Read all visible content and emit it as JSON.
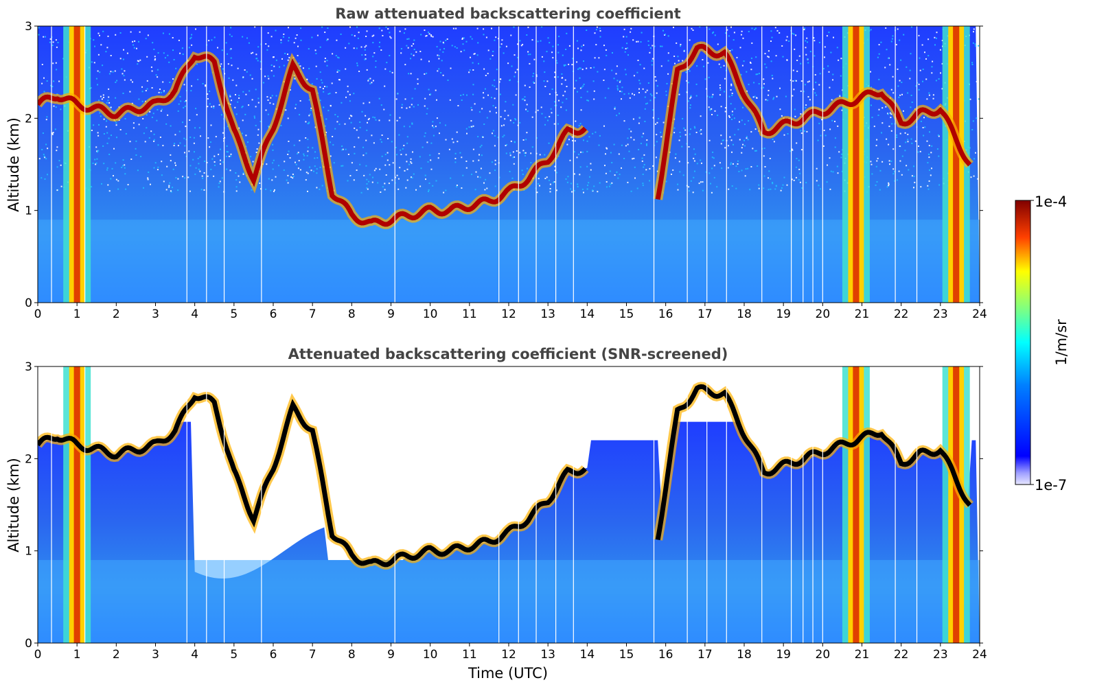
{
  "chart_data": [
    {
      "type": "heatmap",
      "title": "Raw attenuated backscattering coefficient",
      "ylabel": "Altitude (km)",
      "xlabel": "",
      "xlim": [
        0,
        24
      ],
      "ylim": [
        0,
        3
      ],
      "xticks": [
        "0",
        "1",
        "2",
        "3",
        "4",
        "5",
        "6",
        "7",
        "8",
        "9",
        "10",
        "11",
        "12",
        "13",
        "14",
        "15",
        "16",
        "17",
        "18",
        "19",
        "20",
        "21",
        "22",
        "23",
        "24"
      ],
      "yticks": [
        "0",
        "1",
        "2",
        "3"
      ],
      "screened": false,
      "cloud_layer_km": [
        [
          0.0,
          2.15
        ],
        [
          0.5,
          2.25
        ],
        [
          1.0,
          2.15
        ],
        [
          1.5,
          2.1
        ],
        [
          2.0,
          2.05
        ],
        [
          2.5,
          2.1
        ],
        [
          3.0,
          2.15
        ],
        [
          3.5,
          2.3
        ],
        [
          4.0,
          2.7
        ],
        [
          4.5,
          2.6
        ],
        [
          5.0,
          1.85
        ],
        [
          5.5,
          1.35
        ],
        [
          6.0,
          1.9
        ],
        [
          6.5,
          2.55
        ],
        [
          7.0,
          2.3
        ],
        [
          7.5,
          1.2
        ],
        [
          8.0,
          0.95
        ],
        [
          8.5,
          0.85
        ],
        [
          9.0,
          0.9
        ],
        [
          9.5,
          0.95
        ],
        [
          10.0,
          1.0
        ],
        [
          10.5,
          1.0
        ],
        [
          11.0,
          1.05
        ],
        [
          11.5,
          1.1
        ],
        [
          12.0,
          1.2
        ],
        [
          12.5,
          1.35
        ],
        [
          13.0,
          1.55
        ],
        [
          13.5,
          1.85
        ],
        [
          14.0,
          1.9
        ],
        [
          15.0,
          null
        ],
        [
          15.8,
          1.15
        ],
        [
          16.3,
          2.5
        ],
        [
          16.8,
          2.75
        ],
        [
          17.5,
          2.7
        ],
        [
          18.5,
          1.85
        ],
        [
          20.5,
          2.15
        ],
        [
          21.5,
          2.3
        ],
        [
          22.0,
          1.95
        ],
        [
          22.5,
          2.05
        ],
        [
          23.0,
          2.1
        ],
        [
          23.8,
          1.45
        ]
      ],
      "precip_columns_utc": [
        1.0,
        20.85,
        23.4
      ]
    },
    {
      "type": "heatmap",
      "title": "Attenuated backscattering coefficient (SNR-screened)",
      "ylabel": "Altitude (km)",
      "xlabel": "Time (UTC)",
      "xlim": [
        0,
        24
      ],
      "ylim": [
        0,
        3
      ],
      "xticks": [
        "0",
        "1",
        "2",
        "3",
        "4",
        "5",
        "6",
        "7",
        "8",
        "9",
        "10",
        "11",
        "12",
        "13",
        "14",
        "15",
        "16",
        "17",
        "18",
        "19",
        "20",
        "21",
        "22",
        "23",
        "24"
      ],
      "yticks": [
        "0",
        "1",
        "2",
        "3"
      ],
      "screened": true
    }
  ],
  "colorbar": {
    "max_label": "1e-4",
    "min_label": "1e-7",
    "label": "1/m/sr",
    "colormap": "jet"
  }
}
